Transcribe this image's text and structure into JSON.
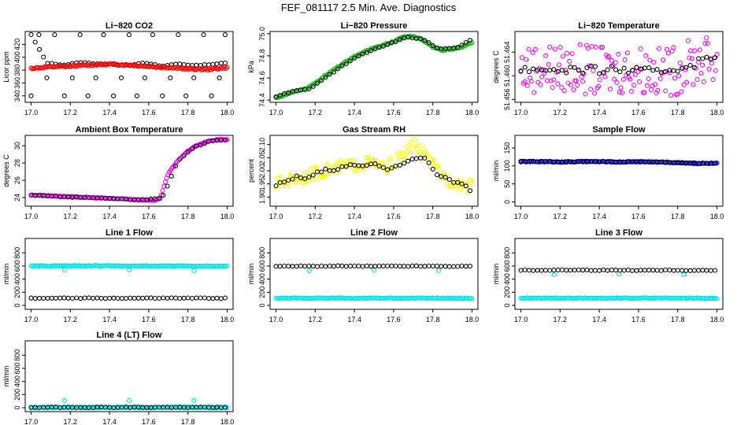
{
  "figure_title": "FEF_081117  2.5 Min. Ave. Diagnostics",
  "chart_data": [
    {
      "type": "scatter",
      "title": "Li−820 CO2",
      "ylabel": "Licor ppm",
      "xlim": [
        17.0,
        18.0
      ],
      "ylim": [
        330,
        440
      ],
      "yticks": [
        "340",
        "360",
        "380",
        "400",
        "420"
      ],
      "yvals": [
        340,
        360,
        380,
        400,
        420
      ],
      "series": [
        {
          "name": "averaged",
          "color": "#000000",
          "x": [
            17.0,
            17.08,
            17.17,
            17.25,
            17.33,
            17.42,
            17.5,
            17.58,
            17.67,
            17.75,
            17.83,
            17.92,
            17.99
          ],
          "y": [
            435,
            391,
            388,
            392,
            390,
            389,
            388,
            391,
            386,
            390,
            387,
            389,
            391
          ],
          "extra": [
            [
              17.0,
              340
            ],
            [
              17.08,
              368
            ],
            [
              17.17,
              340
            ],
            [
              17.25,
              435
            ],
            [
              17.33,
              368
            ],
            [
              17.42,
              340
            ],
            [
              17.5,
              435
            ],
            [
              17.58,
              368
            ],
            [
              17.67,
              340
            ],
            [
              17.75,
              435
            ],
            [
              17.83,
              368
            ],
            [
              17.92,
              340
            ],
            [
              17.99,
              435
            ],
            [
              17.04,
              435
            ],
            [
              17.12,
              435
            ],
            [
              17.21,
              368
            ],
            [
              17.29,
              340
            ],
            [
              17.37,
              435
            ],
            [
              17.46,
              368
            ],
            [
              17.54,
              340
            ],
            [
              17.62,
              435
            ],
            [
              17.71,
              368
            ],
            [
              17.79,
              340
            ],
            [
              17.88,
              435
            ],
            [
              17.96,
              368
            ]
          ]
        },
        {
          "name": "raw",
          "color": "#ff0000",
          "x": [
            17.0,
            17.1,
            17.2,
            17.3,
            17.4,
            17.5,
            17.6,
            17.7,
            17.8,
            17.9,
            18.0
          ],
          "y": [
            383,
            385,
            386,
            388,
            389,
            388,
            386,
            384,
            382,
            381,
            384
          ]
        }
      ]
    },
    {
      "type": "scatter",
      "title": "Li−820 Pressure",
      "ylabel": "kPa",
      "xlim": [
        17.0,
        18.0
      ],
      "ylim": [
        74.38,
        75.02
      ],
      "yticks": [
        "74.4",
        "74.6",
        "74.8",
        "75.0"
      ],
      "yvals": [
        74.4,
        74.6,
        74.8,
        75.0
      ],
      "series": [
        {
          "name": "raw",
          "color": "#22bb22",
          "x": [
            17.0,
            17.05,
            17.1,
            17.15,
            17.2,
            17.25,
            17.3,
            17.35,
            17.4,
            17.45,
            17.5,
            17.55,
            17.6,
            17.65,
            17.7,
            17.75,
            17.8,
            17.85,
            17.9,
            17.95,
            18.0
          ],
          "y": [
            74.42,
            74.45,
            74.48,
            74.5,
            74.55,
            74.62,
            74.68,
            74.74,
            74.79,
            74.84,
            74.87,
            74.9,
            74.93,
            74.97,
            74.98,
            74.94,
            74.88,
            74.85,
            74.86,
            74.88,
            74.92
          ]
        },
        {
          "name": "averaged",
          "color": "#000000",
          "x": [
            17.0,
            17.08,
            17.17,
            17.25,
            17.33,
            17.42,
            17.5,
            17.58,
            17.67,
            17.75,
            17.83,
            17.92,
            17.99
          ],
          "y": [
            74.43,
            74.48,
            74.5,
            74.6,
            74.7,
            74.8,
            74.86,
            74.91,
            74.97,
            74.95,
            74.86,
            74.87,
            74.94
          ]
        }
      ]
    },
    {
      "type": "scatter",
      "title": "Li−820 Temperature",
      "ylabel": "degrees C",
      "xlim": [
        17.0,
        18.0
      ],
      "ylim": [
        51.4555,
        51.4675
      ],
      "yticks": [
        "51.456",
        "51.460",
        "51.464"
      ],
      "yvals": [
        51.456,
        51.46,
        51.464
      ],
      "series": [
        {
          "name": "raw",
          "color": "#ff00ff",
          "x": [
            17.0,
            17.1,
            17.2,
            17.3,
            17.4,
            17.5,
            17.6,
            17.7,
            17.8,
            17.9,
            18.0
          ],
          "y": [
            51.461,
            51.4615,
            51.461,
            51.4612,
            51.4608,
            51.461,
            51.4612,
            51.4605,
            51.461,
            51.4625,
            51.463
          ]
        },
        {
          "name": "averaged",
          "color": "#000000",
          "x": [
            17.0,
            17.08,
            17.17,
            17.25,
            17.33,
            17.42,
            17.5,
            17.58,
            17.67,
            17.75,
            17.83,
            17.92,
            17.99
          ],
          "y": [
            51.461,
            51.4612,
            51.461,
            51.4611,
            51.4609,
            51.461,
            51.4611,
            51.4608,
            51.4606,
            51.461,
            51.4615,
            51.4625,
            51.4632
          ]
        }
      ]
    },
    {
      "type": "scatter",
      "title": "Ambient Box Temperature",
      "ylabel": "degrees C",
      "xlim": [
        17.0,
        18.0
      ],
      "ylim": [
        23.0,
        31.2
      ],
      "yticks": [
        "24",
        "26",
        "28",
        "30"
      ],
      "yvals": [
        24,
        26,
        28,
        30
      ],
      "series": [
        {
          "name": "raw",
          "color": "#ff00ff",
          "x": [
            17.0,
            17.1,
            17.2,
            17.3,
            17.4,
            17.5,
            17.6,
            17.64,
            17.66,
            17.68,
            17.7,
            17.75,
            17.8,
            17.85,
            17.9,
            17.95,
            17.99
          ],
          "y": [
            24.3,
            24.2,
            24.1,
            24.0,
            23.9,
            23.8,
            23.7,
            23.7,
            23.9,
            25.5,
            26.8,
            28.3,
            29.4,
            30.1,
            30.5,
            30.7,
            30.7
          ]
        },
        {
          "name": "averaged",
          "color": "#000000",
          "x": [
            17.0,
            17.08,
            17.17,
            17.25,
            17.33,
            17.42,
            17.5,
            17.58,
            17.67,
            17.75,
            17.83,
            17.92,
            17.99
          ],
          "y": [
            24.3,
            24.2,
            24.1,
            24.0,
            23.95,
            23.9,
            23.8,
            23.75,
            24.0,
            28.3,
            29.8,
            30.6,
            30.7
          ]
        }
      ]
    },
    {
      "type": "scatter",
      "title": "Gas Stream RH",
      "ylabel": "percent",
      "xlim": [
        17.0,
        18.0
      ],
      "ylim": [
        1.865,
        2.135
      ],
      "yticks": [
        "1.90",
        "1.95",
        "2.00",
        "2.05",
        "2.10"
      ],
      "yvals": [
        1.9,
        1.95,
        2.0,
        2.05,
        2.1
      ],
      "series": [
        {
          "name": "raw",
          "color": "#ffff00",
          "x": [
            17.0,
            17.05,
            17.1,
            17.15,
            17.2,
            17.25,
            17.3,
            17.35,
            17.4,
            17.45,
            17.5,
            17.55,
            17.6,
            17.65,
            17.7,
            17.75,
            17.8,
            17.85,
            17.9,
            17.95,
            18.0
          ],
          "y": [
            1.95,
            1.96,
            1.97,
            1.98,
            1.99,
            2.0,
            2.01,
            2.02,
            2.02,
            2.03,
            2.03,
            2.01,
            2.03,
            2.06,
            2.1,
            2.07,
            2.02,
            1.98,
            1.96,
            1.95,
            1.94
          ]
        },
        {
          "name": "averaged",
          "color": "#000000",
          "x": [
            17.0,
            17.08,
            17.17,
            17.25,
            17.33,
            17.42,
            17.5,
            17.58,
            17.67,
            17.75,
            17.83,
            17.92,
            17.99
          ],
          "y": [
            1.95,
            1.97,
            1.98,
            2.0,
            2.01,
            2.02,
            2.02,
            2.01,
            2.04,
            2.05,
            1.98,
            1.96,
            1.93
          ]
        }
      ]
    },
    {
      "type": "scatter",
      "title": "Sample Flow",
      "ylabel": "ml/min",
      "xlim": [
        17.0,
        18.0
      ],
      "ylim": [
        -12,
        185
      ],
      "yticks": [
        "0",
        "50",
        "100",
        "150"
      ],
      "yvals": [
        0,
        50,
        100,
        150
      ],
      "series": [
        {
          "name": "raw",
          "color": "#0000cc",
          "x": [
            17.0,
            17.1,
            17.2,
            17.3,
            17.4,
            17.5,
            17.6,
            17.7,
            17.8,
            17.9,
            18.0
          ],
          "y": [
            112,
            112,
            111,
            112,
            112,
            111,
            112,
            111,
            109,
            107,
            107
          ]
        },
        {
          "name": "averaged",
          "color": "#000000",
          "x": [
            17.0,
            17.08,
            17.17,
            17.25,
            17.33,
            17.42,
            17.5,
            17.58,
            17.67,
            17.75,
            17.83,
            17.92,
            17.99
          ],
          "y": [
            112,
            112,
            112,
            111,
            112,
            112,
            111,
            112,
            111,
            110,
            109,
            108,
            108
          ]
        }
      ]
    },
    {
      "type": "scatter",
      "title": "Line 1 Flow",
      "ylabel": "ml/min",
      "xlim": [
        17.0,
        18.0
      ],
      "ylim": [
        -60,
        1020
      ],
      "yticks": [
        "0",
        "200",
        "400",
        "600",
        "800"
      ],
      "yvals": [
        0,
        200,
        400,
        600,
        800
      ],
      "series": [
        {
          "name": "raw",
          "color": "#00e5e5",
          "x": [
            17.0,
            17.1,
            17.2,
            17.3,
            17.4,
            17.5,
            17.6,
            17.7,
            17.8,
            17.9,
            17.99
          ],
          "y": [
            600,
            602,
            603,
            604,
            603,
            602,
            601,
            600,
            599,
            598,
            597
          ],
          "extra": [
            [
              17.17,
              535
            ],
            [
              17.5,
              540
            ],
            [
              17.83,
              530
            ]
          ]
        },
        {
          "name": "averaged",
          "color": "#000000",
          "x": [
            17.0,
            17.08,
            17.17,
            17.25,
            17.33,
            17.42,
            17.5,
            17.58,
            17.67,
            17.75,
            17.83,
            17.92,
            17.99
          ],
          "y": [
            110,
            110,
            110,
            110,
            110,
            110,
            110,
            110,
            110,
            110,
            110,
            110,
            110
          ]
        }
      ]
    },
    {
      "type": "scatter",
      "title": "Line 2 Flow",
      "ylabel": "ml/min",
      "xlim": [
        17.0,
        18.0
      ],
      "ylim": [
        -60,
        1020
      ],
      "yticks": [
        "0",
        "200",
        "400",
        "600",
        "800"
      ],
      "yvals": [
        0,
        200,
        400,
        600,
        800
      ],
      "series": [
        {
          "name": "raw",
          "color": "#00e5e5",
          "x": [
            17.0,
            17.1,
            17.2,
            17.3,
            17.4,
            17.5,
            17.6,
            17.7,
            17.8,
            17.9,
            17.99
          ],
          "y": [
            110,
            110,
            110,
            110,
            110,
            110,
            110,
            110,
            110,
            108,
            107
          ],
          "extra": [
            [
              17.17,
              530
            ],
            [
              17.5,
              540
            ],
            [
              17.83,
              530
            ]
          ]
        },
        {
          "name": "averaged",
          "color": "#000000",
          "x": [
            17.0,
            17.08,
            17.17,
            17.25,
            17.33,
            17.42,
            17.5,
            17.58,
            17.67,
            17.75,
            17.83,
            17.92,
            17.99
          ],
          "y": [
            595,
            596,
            597,
            598,
            598,
            597,
            596,
            597,
            598,
            597,
            596,
            595,
            595
          ]
        }
      ]
    },
    {
      "type": "scatter",
      "title": "Line 3 Flow",
      "ylabel": "ml/min",
      "xlim": [
        17.0,
        18.0
      ],
      "ylim": [
        -60,
        1020
      ],
      "yticks": [
        "0",
        "200",
        "400",
        "600",
        "800"
      ],
      "yvals": [
        0,
        200,
        400,
        600,
        800
      ],
      "series": [
        {
          "name": "raw",
          "color": "#00e5e5",
          "x": [
            17.0,
            17.1,
            17.2,
            17.3,
            17.4,
            17.5,
            17.6,
            17.7,
            17.8,
            17.9,
            17.99
          ],
          "y": [
            110,
            110,
            110,
            110,
            110,
            110,
            110,
            110,
            110,
            108,
            107
          ],
          "extra": [
            [
              17.17,
              470
            ],
            [
              17.5,
              480
            ],
            [
              17.83,
              470
            ]
          ]
        },
        {
          "name": "averaged",
          "color": "#000000",
          "x": [
            17.0,
            17.08,
            17.17,
            17.25,
            17.33,
            17.42,
            17.5,
            17.58,
            17.67,
            17.75,
            17.83,
            17.92,
            17.99
          ],
          "y": [
            535,
            536,
            537,
            538,
            537,
            536,
            535,
            536,
            537,
            536,
            535,
            534,
            533
          ]
        }
      ]
    },
    {
      "type": "scatter",
      "title": "Line 4 (LT) Flow",
      "ylabel": "ml/min",
      "xlim": [
        17.0,
        18.0
      ],
      "ylim": [
        -60,
        1020
      ],
      "yticks": [
        "0",
        "200",
        "400",
        "600",
        "800"
      ],
      "yvals": [
        0,
        200,
        400,
        600,
        800
      ],
      "series": [
        {
          "name": "raw",
          "color": "#00e5e5",
          "x": [
            17.0,
            17.1,
            17.2,
            17.3,
            17.4,
            17.5,
            17.6,
            17.7,
            17.8,
            17.9,
            17.99
          ],
          "y": [
            5,
            5,
            5,
            5,
            5,
            5,
            5,
            5,
            5,
            5,
            5
          ],
          "extra": [
            [
              17.17,
              110
            ],
            [
              17.5,
              110
            ],
            [
              17.83,
              110
            ]
          ]
        },
        {
          "name": "averaged",
          "color": "#000000",
          "x": [
            17.0,
            17.08,
            17.17,
            17.25,
            17.33,
            17.42,
            17.5,
            17.58,
            17.67,
            17.75,
            17.83,
            17.92,
            17.99
          ],
          "y": [
            5,
            5,
            5,
            5,
            5,
            5,
            5,
            5,
            5,
            5,
            5,
            5,
            5
          ]
        }
      ]
    }
  ],
  "x_tick_labels": [
    "17.0",
    "17.2",
    "17.4",
    "17.6",
    "17.8",
    "18.0"
  ],
  "x_tick_values": [
    17.0,
    17.2,
    17.4,
    17.6,
    17.8,
    18.0
  ]
}
